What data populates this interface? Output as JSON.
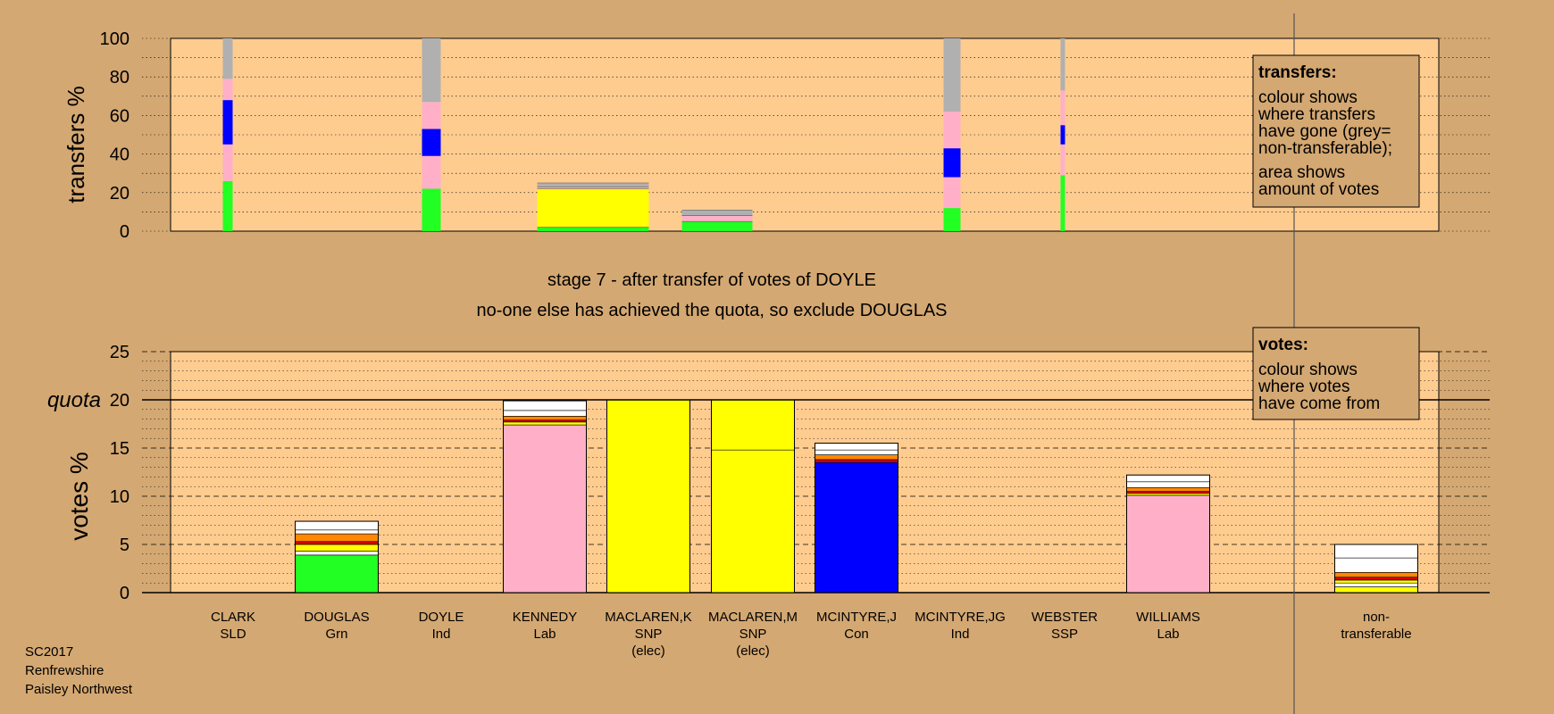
{
  "footer": {
    "lines": [
      "SC2017",
      "Renfrewshire",
      "Paisley Northwest"
    ]
  },
  "stage": {
    "line1": "stage 7 - after transfer of votes of DOYLE",
    "line2": "no-one else has achieved the quota, so exclude DOUGLAS"
  },
  "colors": {
    "background": "#d4a872",
    "panel": "#ffcc90",
    "green": "#22ff22",
    "pink": "#ffb0c8",
    "blue": "#0000ff",
    "yellow": "#ffff00",
    "grey": "#b0b0b0",
    "red": "#dd0000",
    "orange": "#ff8800",
    "white": "#ffffff"
  },
  "legends": {
    "transfers": {
      "title": "transfers:",
      "lines1": [
        "colour shows",
        "where transfers",
        "have gone (grey=",
        "non-transferable);"
      ],
      "lines2": [
        "area shows",
        "amount of votes"
      ]
    },
    "votes": {
      "title": "votes:",
      "lines": [
        "colour shows",
        "where votes",
        "have come from"
      ]
    }
  },
  "chart_data": [
    {
      "type": "bar",
      "ylabel": "transfers %",
      "ylim": [
        0,
        100
      ],
      "yticks": [
        0,
        20,
        40,
        60,
        80,
        100
      ],
      "grid": "dotted every 10",
      "bars": [
        {
          "candidate": "CLARK",
          "segments": [
            {
              "color": "green",
              "from": 0,
              "to": 26
            },
            {
              "color": "pink",
              "from": 26,
              "to": 45
            },
            {
              "color": "blue",
              "from": 45,
              "to": 68
            },
            {
              "color": "pink",
              "from": 68,
              "to": 79
            },
            {
              "color": "grey",
              "from": 79,
              "to": 100
            }
          ]
        },
        {
          "candidate": "DOYLE",
          "segments": [
            {
              "color": "green",
              "from": 0,
              "to": 22
            },
            {
              "color": "pink",
              "from": 22,
              "to": 39
            },
            {
              "color": "blue",
              "from": 39,
              "to": 53
            },
            {
              "color": "pink",
              "from": 53,
              "to": 67
            },
            {
              "color": "grey",
              "from": 67,
              "to": 100
            }
          ]
        },
        {
          "candidate": "MACLAREN,K",
          "segments": [
            {
              "color": "green",
              "from": 0,
              "to": 2
            },
            {
              "color": "yellow",
              "from": 2,
              "to": 22
            },
            {
              "color": "pink",
              "from": 22,
              "to": 23
            },
            {
              "color": "grey",
              "from": 23,
              "to": 25
            }
          ]
        },
        {
          "candidate": "MACLAREN,M",
          "segments": [
            {
              "color": "green",
              "from": 0,
              "to": 5
            },
            {
              "color": "pink",
              "from": 5,
              "to": 8
            },
            {
              "color": "grey",
              "from": 8,
              "to": 11
            }
          ]
        },
        {
          "candidate": "MCINTYRE,JG",
          "segments": [
            {
              "color": "green",
              "from": 0,
              "to": 12
            },
            {
              "color": "pink",
              "from": 12,
              "to": 28
            },
            {
              "color": "blue",
              "from": 28,
              "to": 43
            },
            {
              "color": "pink",
              "from": 43,
              "to": 62
            },
            {
              "color": "grey",
              "from": 62,
              "to": 100
            }
          ]
        },
        {
          "candidate": "WEBSTER",
          "segments": [
            {
              "color": "green",
              "from": 0,
              "to": 29
            },
            {
              "color": "pink",
              "from": 29,
              "to": 45
            },
            {
              "color": "blue",
              "from": 45,
              "to": 55
            },
            {
              "color": "pink",
              "from": 55,
              "to": 73
            },
            {
              "color": "grey",
              "from": 73,
              "to": 100
            }
          ]
        }
      ]
    },
    {
      "type": "bar",
      "ylabel": "votes %",
      "ylim": [
        0,
        25
      ],
      "yticks": [
        0,
        5,
        10,
        15,
        20,
        25
      ],
      "quota": 20,
      "quota_label": "quota",
      "grid": "dashed every 5, dotted every 1",
      "categories": [
        {
          "name": "CLARK",
          "party": "SLD",
          "note": ""
        },
        {
          "name": "DOUGLAS",
          "party": "Grn",
          "note": ""
        },
        {
          "name": "DOYLE",
          "party": "Ind",
          "note": ""
        },
        {
          "name": "KENNEDY",
          "party": "Lab",
          "note": ""
        },
        {
          "name": "MACLAREN,K",
          "party": "SNP",
          "note": "(elec)"
        },
        {
          "name": "MACLAREN,M",
          "party": "SNP",
          "note": "(elec)"
        },
        {
          "name": "MCINTYRE,J",
          "party": "Con",
          "note": ""
        },
        {
          "name": "MCINTYRE,JG",
          "party": "Ind",
          "note": ""
        },
        {
          "name": "WEBSTER",
          "party": "SSP",
          "note": ""
        },
        {
          "name": "WILLIAMS",
          "party": "Lab",
          "note": ""
        },
        {
          "name": "non-",
          "party": "transferable",
          "note": ""
        }
      ],
      "bars": [
        {
          "candidate": "DOUGLAS",
          "segments": [
            {
              "color": "green",
              "from": 0,
              "to": 3.9
            },
            {
              "color": "white",
              "from": 3.9,
              "to": 4.3
            },
            {
              "color": "yellow",
              "from": 4.3,
              "to": 5.0
            },
            {
              "color": "red",
              "from": 5.0,
              "to": 5.3
            },
            {
              "color": "orange",
              "from": 5.3,
              "to": 6.1
            },
            {
              "color": "white",
              "from": 6.1,
              "to": 6.5
            },
            {
              "color": "white",
              "from": 6.5,
              "to": 7.4
            }
          ]
        },
        {
          "candidate": "KENNEDY",
          "segments": [
            {
              "color": "pink",
              "from": 0,
              "to": 17.4
            },
            {
              "color": "yellow",
              "from": 17.4,
              "to": 17.7
            },
            {
              "color": "red",
              "from": 17.7,
              "to": 17.9
            },
            {
              "color": "orange",
              "from": 17.9,
              "to": 18.3
            },
            {
              "color": "white",
              "from": 18.3,
              "to": 18.9
            },
            {
              "color": "white",
              "from": 18.9,
              "to": 19.9
            }
          ]
        },
        {
          "candidate": "MACLAREN,K",
          "segments": [
            {
              "color": "yellow",
              "from": 0,
              "to": 20
            }
          ]
        },
        {
          "candidate": "MACLAREN,M",
          "segments": [
            {
              "color": "yellow",
              "from": 0,
              "to": 14.8
            },
            {
              "color": "yellow",
              "from": 14.8,
              "to": 20
            }
          ]
        },
        {
          "candidate": "MCINTYRE,J",
          "segments": [
            {
              "color": "blue",
              "from": 0,
              "to": 13.5
            },
            {
              "color": "red",
              "from": 13.5,
              "to": 13.8
            },
            {
              "color": "orange",
              "from": 13.8,
              "to": 14.3
            },
            {
              "color": "white",
              "from": 14.3,
              "to": 14.8
            },
            {
              "color": "white",
              "from": 14.8,
              "to": 15.5
            }
          ]
        },
        {
          "candidate": "WILLIAMS",
          "segments": [
            {
              "color": "pink",
              "from": 0,
              "to": 10.1
            },
            {
              "color": "yellow",
              "from": 10.1,
              "to": 10.3
            },
            {
              "color": "red",
              "from": 10.3,
              "to": 10.5
            },
            {
              "color": "orange",
              "from": 10.5,
              "to": 10.9
            },
            {
              "color": "white",
              "from": 10.9,
              "to": 11.5
            },
            {
              "color": "white",
              "from": 11.5,
              "to": 12.2
            }
          ]
        },
        {
          "candidate": "non-",
          "segments": [
            {
              "color": "yellow",
              "from": 0,
              "to": 0.6
            },
            {
              "color": "white",
              "from": 0.6,
              "to": 1.0
            },
            {
              "color": "yellow",
              "from": 1.0,
              "to": 1.3
            },
            {
              "color": "red",
              "from": 1.3,
              "to": 1.6
            },
            {
              "color": "orange",
              "from": 1.6,
              "to": 2.1
            },
            {
              "color": "white",
              "from": 2.1,
              "to": 3.6
            },
            {
              "color": "white",
              "from": 3.6,
              "to": 5.0
            }
          ]
        }
      ]
    }
  ]
}
